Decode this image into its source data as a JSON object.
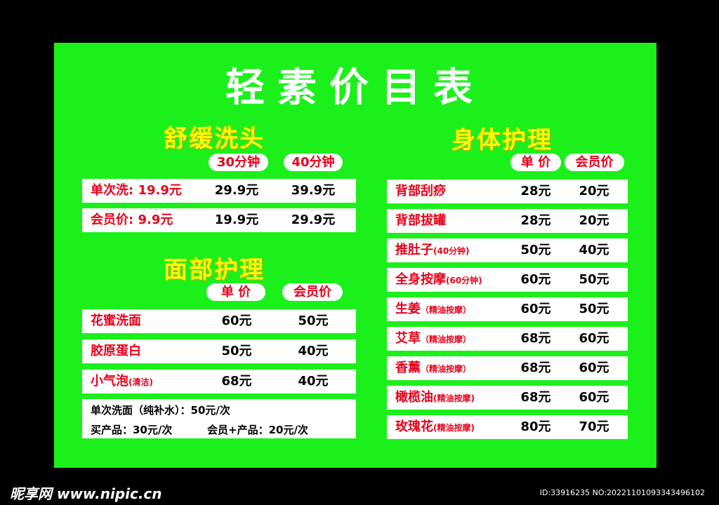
{
  "title": "轻素价目表",
  "shampoo": {
    "heading": "舒缓洗头",
    "cols": [
      "30分钟",
      "40分钟"
    ],
    "rows": [
      {
        "name": "单次洗: 19.9元",
        "p1": "29.9元",
        "p2": "39.9元"
      },
      {
        "name": "会员价: 9.9元",
        "p1": "19.9元",
        "p2": "29.9元"
      }
    ]
  },
  "face": {
    "heading": "面部护理",
    "cols": [
      "单 价",
      "会员价"
    ],
    "rows": [
      {
        "name": "花蜜洗面",
        "note": "",
        "p1": "60元",
        "p2": "50元"
      },
      {
        "name": "胶原蛋白",
        "note": "",
        "p1": "50元",
        "p2": "40元"
      },
      {
        "name": "小气泡",
        "note": "(清洁)",
        "p1": "68元",
        "p2": "40元"
      }
    ],
    "notes": [
      "单次洗面（纯补水）：50元/次",
      "买产品：30元/次",
      "会员+产品：20元/次"
    ]
  },
  "body": {
    "heading": "身体护理",
    "cols": [
      "单 价",
      "会员价"
    ],
    "rows": [
      {
        "name": "背部刮痧",
        "note": "",
        "p1": "28元",
        "p2": "20元"
      },
      {
        "name": "背部拔罐",
        "note": "",
        "p1": "28元",
        "p2": "20元"
      },
      {
        "name": "推肚子",
        "note": "(40分钟)",
        "p1": "50元",
        "p2": "40元"
      },
      {
        "name": "全身按摩",
        "note": "(60分钟)",
        "p1": "60元",
        "p2": "50元"
      },
      {
        "name": "生姜",
        "note": "（精油按摩）",
        "p1": "60元",
        "p2": "50元"
      },
      {
        "name": "艾草",
        "note": "（精油按摩）",
        "p1": "68元",
        "p2": "60元"
      },
      {
        "name": "香薰",
        "note": "（精油按摩）",
        "p1": "68元",
        "p2": "60元"
      },
      {
        "name": "橄榄油",
        "note": "(精油按摩)",
        "p1": "68元",
        "p2": "60元"
      },
      {
        "name": "玫瑰花",
        "note": "(精油按摩)",
        "p1": "80元",
        "p2": "70元"
      }
    ]
  },
  "watermark": "昵享网 www.nipic.cn",
  "id_text": "ID:33916235 NO:20221101093343496102"
}
